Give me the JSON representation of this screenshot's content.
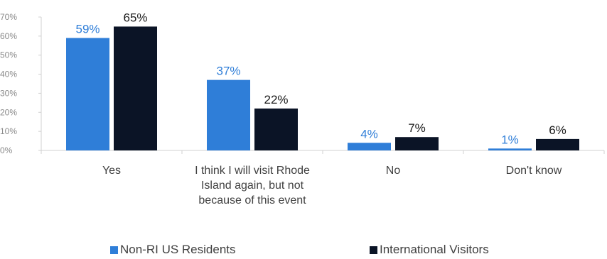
{
  "chart_data": {
    "type": "bar",
    "categories": [
      [
        "Yes"
      ],
      [
        "I think I will visit Rhode",
        "Island again, but not",
        "because of this event"
      ],
      [
        "No"
      ],
      [
        "Don't know"
      ]
    ],
    "series": [
      {
        "name": "Non-RI US Residents",
        "values": [
          59,
          37,
          4,
          1
        ],
        "labels": [
          "59%",
          "37%",
          "4%",
          "1%"
        ],
        "color": "#2F7ED8"
      },
      {
        "name": "International Visitors",
        "values": [
          65,
          22,
          7,
          6
        ],
        "labels": [
          "65%",
          "22%",
          "7%",
          "6%"
        ],
        "color": "#0B1426"
      }
    ],
    "y_ticks": [
      "0%",
      "10%",
      "20%",
      "30%",
      "40%",
      "50%",
      "60%",
      "70%"
    ],
    "ylim": [
      0,
      70
    ],
    "legend_position": "bottom",
    "grid": false
  }
}
